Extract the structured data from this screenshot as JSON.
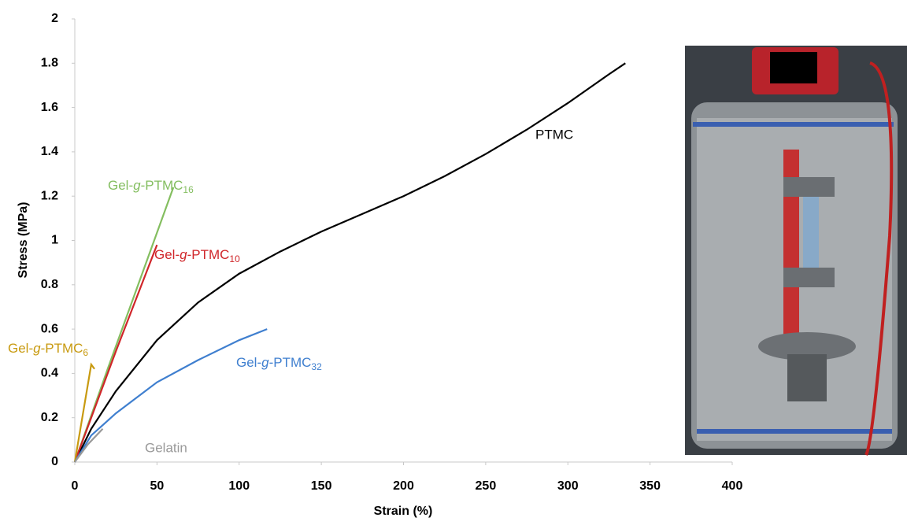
{
  "chart_data": {
    "type": "line",
    "xlabel": "Strain (%)",
    "ylabel": "Stress (MPa)",
    "xlim": [
      0,
      400
    ],
    "xticks": [
      0,
      50,
      100,
      150,
      200,
      250,
      300,
      350,
      400
    ],
    "ylim": [
      0,
      2
    ],
    "yticks": [
      0,
      0.2,
      0.4,
      0.6,
      0.8,
      1,
      1.2,
      1.4,
      1.6,
      1.8,
      2
    ],
    "grid": false,
    "series": [
      {
        "name": "PTMC",
        "color": "#000000",
        "x": [
          0,
          10,
          25,
          50,
          75,
          100,
          125,
          150,
          175,
          200,
          225,
          250,
          275,
          300,
          325,
          335
        ],
        "values": [
          0,
          0.15,
          0.32,
          0.55,
          0.72,
          0.85,
          0.95,
          1.04,
          1.12,
          1.2,
          1.29,
          1.39,
          1.5,
          1.62,
          1.75,
          1.8
        ]
      },
      {
        "name": "Gel-g-PTMC16",
        "color": "#84be60",
        "x": [
          0,
          20,
          40,
          60
        ],
        "values": [
          0,
          0.42,
          0.83,
          1.24
        ]
      },
      {
        "name": "Gel-g-PTMC10",
        "color": "#d0262a",
        "x": [
          0,
          25,
          50
        ],
        "values": [
          0,
          0.5,
          0.98
        ]
      },
      {
        "name": "Gel-g-PTMC6",
        "color": "#c89a10",
        "x": [
          0,
          5,
          10,
          12
        ],
        "values": [
          0,
          0.22,
          0.44,
          0.42
        ]
      },
      {
        "name": "Gel-g-PTMC32",
        "color": "#3f7fcf",
        "x": [
          0,
          10,
          25,
          50,
          75,
          100,
          117
        ],
        "values": [
          0,
          0.12,
          0.22,
          0.36,
          0.46,
          0.55,
          0.6
        ]
      },
      {
        "name": "Gelatin",
        "color": "#999999",
        "x": [
          0,
          8,
          17
        ],
        "values": [
          0,
          0.08,
          0.15
        ]
      }
    ]
  }
}
